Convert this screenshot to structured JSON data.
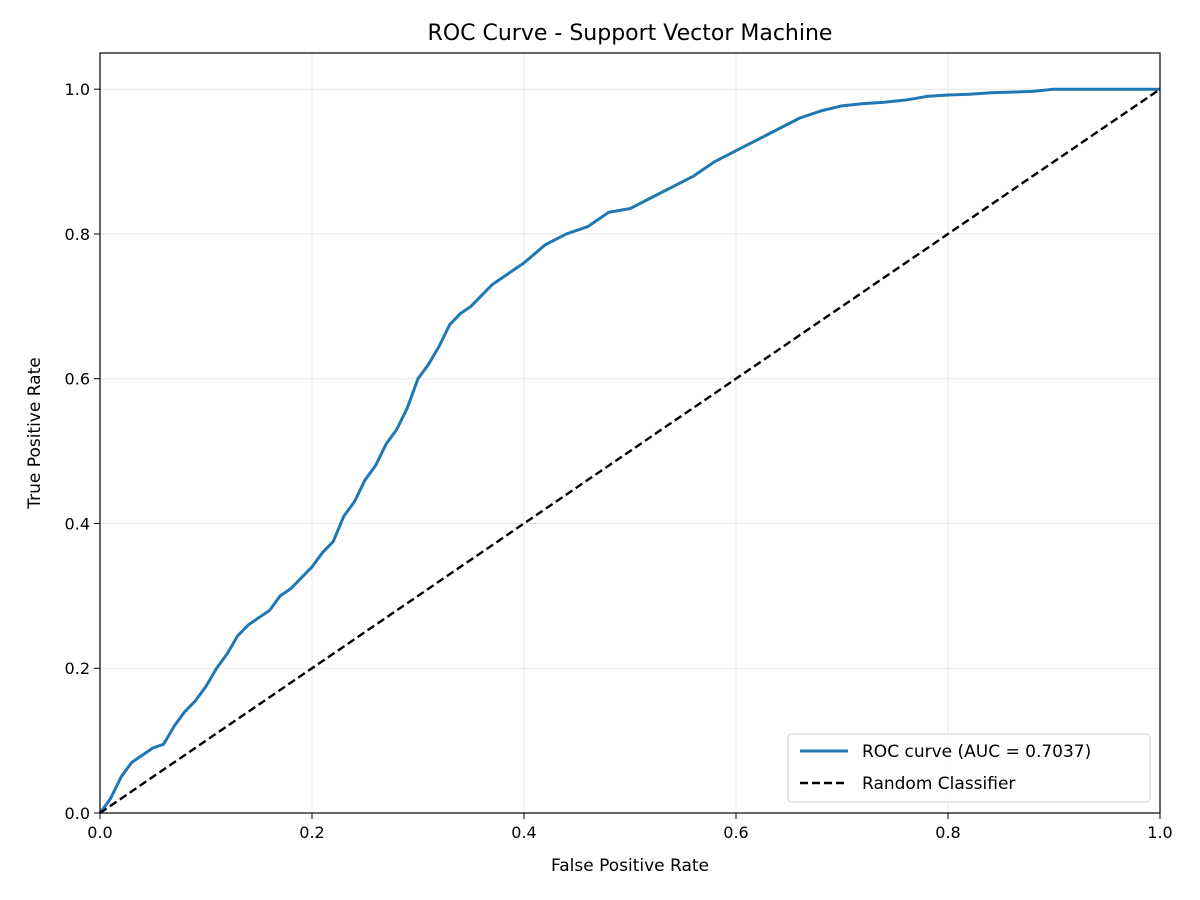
{
  "chart_data": {
    "type": "line",
    "title": "ROC Curve - Support Vector Machine",
    "xlabel": "False Positive Rate",
    "ylabel": "True Positive Rate",
    "xlim": [
      0,
      1
    ],
    "ylim": [
      0,
      1.05
    ],
    "x_ticks": [
      "0.0",
      "0.2",
      "0.4",
      "0.6",
      "0.8",
      "1.0"
    ],
    "y_ticks": [
      "0.0",
      "0.2",
      "0.4",
      "0.6",
      "0.8",
      "1.0"
    ],
    "grid": true,
    "legend_position": "bottom-right",
    "series": [
      {
        "name": "ROC curve (AUC = 0.7037)",
        "color": "#1f77b4",
        "style": "solid",
        "x": [
          0.0,
          0.01,
          0.02,
          0.03,
          0.04,
          0.05,
          0.06,
          0.07,
          0.08,
          0.09,
          0.1,
          0.11,
          0.12,
          0.13,
          0.14,
          0.15,
          0.16,
          0.17,
          0.18,
          0.19,
          0.2,
          0.21,
          0.22,
          0.23,
          0.24,
          0.25,
          0.26,
          0.27,
          0.28,
          0.29,
          0.3,
          0.31,
          0.32,
          0.33,
          0.34,
          0.35,
          0.36,
          0.37,
          0.38,
          0.39,
          0.4,
          0.42,
          0.44,
          0.46,
          0.48,
          0.5,
          0.52,
          0.54,
          0.56,
          0.58,
          0.6,
          0.62,
          0.64,
          0.66,
          0.68,
          0.7,
          0.72,
          0.74,
          0.76,
          0.78,
          0.8,
          0.82,
          0.84,
          0.86,
          0.88,
          0.9,
          0.95,
          1.0
        ],
        "y": [
          0.0,
          0.02,
          0.05,
          0.07,
          0.08,
          0.09,
          0.095,
          0.12,
          0.14,
          0.155,
          0.175,
          0.2,
          0.22,
          0.245,
          0.26,
          0.27,
          0.28,
          0.3,
          0.31,
          0.325,
          0.34,
          0.36,
          0.375,
          0.41,
          0.43,
          0.46,
          0.48,
          0.51,
          0.53,
          0.56,
          0.6,
          0.62,
          0.645,
          0.675,
          0.69,
          0.7,
          0.715,
          0.73,
          0.74,
          0.75,
          0.76,
          0.785,
          0.8,
          0.81,
          0.83,
          0.835,
          0.85,
          0.865,
          0.88,
          0.9,
          0.915,
          0.93,
          0.945,
          0.96,
          0.97,
          0.977,
          0.98,
          0.982,
          0.985,
          0.99,
          0.992,
          0.993,
          0.995,
          0.996,
          0.997,
          1.0,
          1.0,
          1.0
        ]
      },
      {
        "name": "Random Classifier",
        "color": "#000000",
        "style": "dashed",
        "x": [
          0,
          1
        ],
        "y": [
          0,
          1
        ]
      }
    ]
  }
}
